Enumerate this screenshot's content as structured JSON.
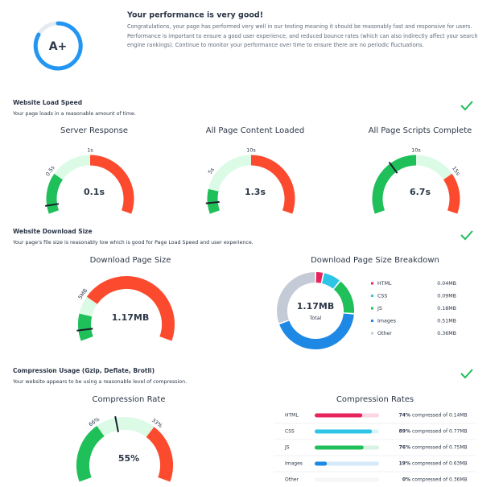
{
  "header": {
    "grade": "A+",
    "title": "Your performance is very good!",
    "text": "Congratulations, your page has performed very well in our testing meaning it should be reasonably fast and responsive for users. Performance is important to ensure a good user experience, and reduced bounce rates (which can also indirectly affect your search engine rankings). Continue to monitor your performance over time to ensure there are no periodic fluctuations."
  },
  "sections": [
    {
      "title": "Website Load Speed",
      "subtitle": "Your page loads in a reasonable amount of time.",
      "gauges": [
        {
          "title": "Server Response",
          "value": 0.1,
          "value_label": "0.1s",
          "range": [
            0,
            2
          ],
          "ticks": [
            {
              "value": 0.5,
              "label": "0.5s"
            },
            {
              "value": 1,
              "label": "1s"
            }
          ],
          "bands": [
            {
              "end": 0.5,
              "color": "#1fbf5a"
            },
            {
              "end": 1,
              "color": "#dcfbe6"
            },
            {
              "end": 2,
              "color": "#fb4a2e"
            }
          ]
        },
        {
          "title": "All Page Content Loaded",
          "value": 1.3,
          "value_label": "1.3s",
          "range": [
            0,
            20
          ],
          "ticks": [
            {
              "value": 5,
              "label": "5s"
            },
            {
              "value": 10,
              "label": "10s"
            }
          ],
          "bands": [
            {
              "end": 3,
              "color": "#1fbf5a"
            },
            {
              "end": 10,
              "color": "#dcfbe6"
            },
            {
              "end": 20,
              "color": "#fb4a2e"
            }
          ]
        },
        {
          "title": "All Page Scripts Complete",
          "value": 6.7,
          "value_label": "6.7s",
          "range": [
            0,
            20
          ],
          "ticks": [
            {
              "value": 10,
              "label": "10s"
            },
            {
              "value": 15,
              "label": "15s"
            }
          ],
          "bands": [
            {
              "end": 10,
              "color": "#1fbf5a"
            },
            {
              "end": 15,
              "color": "#dcfbe6"
            },
            {
              "end": 20,
              "color": "#fb4a2e"
            }
          ]
        }
      ]
    },
    {
      "title": "Website Download Size",
      "subtitle": "Your page's file size is reasonably low which is good for Page Load Speed and user experience.",
      "gauges": [
        {
          "title": "Download Page Size",
          "value": 1.17,
          "value_label": "1.17MB",
          "range": [
            0,
            20
          ],
          "ticks": [
            {
              "value": 5,
              "label": "5MB"
            }
          ],
          "bands": [
            {
              "end": 3,
              "color": "#1fbf5a"
            },
            {
              "end": 5,
              "color": "#dcfbe6"
            },
            {
              "end": 20,
              "color": "#fb4a2e"
            }
          ]
        }
      ],
      "breakdown": {
        "title": "Download Page Size Breakdown",
        "total_label": "1.17MB",
        "total_caption": "Total",
        "items": [
          {
            "name": "HTML",
            "value": 0.04,
            "label": "0.04MB",
            "color": "#e8245c"
          },
          {
            "name": "CSS",
            "value": 0.09,
            "label": "0.09MB",
            "color": "#2ec4e6"
          },
          {
            "name": "JS",
            "value": 0.18,
            "label": "0.18MB",
            "color": "#1fbf5a"
          },
          {
            "name": "Images",
            "value": 0.51,
            "label": "0.51MB",
            "color": "#1e88e5"
          },
          {
            "name": "Other",
            "value": 0.36,
            "label": "0.36MB",
            "color": "#c5cbd6"
          }
        ]
      }
    },
    {
      "title": "Compression Usage (Gzip, Deflate, Brotli)",
      "subtitle": "Your website appears to be using a reasonable level of compression.",
      "gauges": [
        {
          "title": "Compression Rate",
          "value": 55,
          "value_label": "55%",
          "range": [
            100,
            0
          ],
          "ticks": [
            {
              "value": 66,
              "label": "66%"
            },
            {
              "value": 33,
              "label": "33%"
            }
          ],
          "bands": [
            {
              "end": 66,
              "color": "#1fbf5a"
            },
            {
              "end": 33,
              "color": "#dcfbe6"
            },
            {
              "end": 0,
              "color": "#fb4a2e"
            }
          ]
        }
      ],
      "rates": {
        "title": "Compression Rates",
        "rows": [
          {
            "name": "HTML",
            "percent": 74,
            "percent_label": "74%",
            "text": "compressed of 0.14MB",
            "color": "#e8245c"
          },
          {
            "name": "CSS",
            "percent": 89,
            "percent_label": "89%",
            "text": "compressed of 0.77MB",
            "color": "#2ec4e6"
          },
          {
            "name": "JS",
            "percent": 76,
            "percent_label": "76%",
            "text": "compressed of 0.75MB",
            "color": "#1fbf5a"
          },
          {
            "name": "Images",
            "percent": 19,
            "percent_label": "19%",
            "text": "compressed of 0.63MB",
            "color": "#1e88e5"
          },
          {
            "name": "Other",
            "percent": 0,
            "percent_label": "0%",
            "text": "compressed of 0.36MB",
            "color": "#c5cbd6"
          }
        ]
      }
    }
  ]
}
